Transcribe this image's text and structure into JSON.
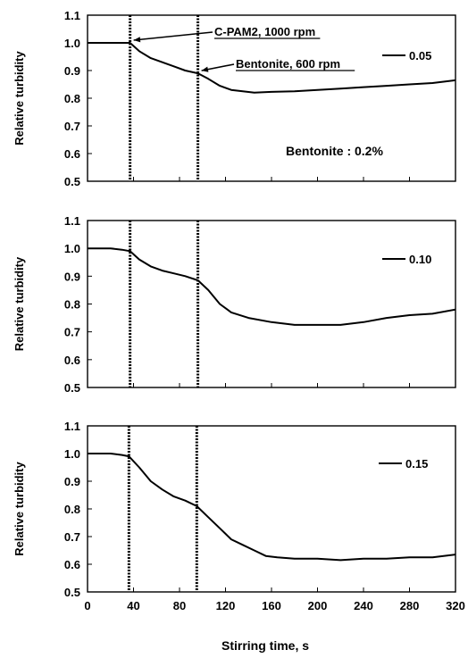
{
  "figure": {
    "xlabel": "Stirring time, s",
    "x_ticks": [
      "0",
      "40",
      "80",
      "120",
      "160",
      "200",
      "240",
      "280",
      "320"
    ]
  },
  "chart_data": [
    {
      "type": "line",
      "ylabel": "Relative turbidity",
      "xlim": [
        0,
        320
      ],
      "ylim": [
        0.5,
        1.1
      ],
      "y_ticks": [
        "0.5",
        "0.6",
        "0.7",
        "0.8",
        "0.9",
        "1.0",
        "1.1"
      ],
      "vlines": [
        37,
        96
      ],
      "legend": "0.05",
      "annotations": [
        {
          "text": "C-PAM2, 1000 rpm",
          "x": 37,
          "y": 1.0
        },
        {
          "text": "Bentonite, 600 rpm",
          "x": 96,
          "y": 0.89
        }
      ],
      "note": "Bentonite  :  0.2%",
      "series": [
        {
          "x": [
            0,
            10,
            20,
            30,
            37,
            45,
            55,
            65,
            75,
            85,
            96,
            105,
            115,
            125,
            135,
            145,
            160,
            180,
            200,
            220,
            240,
            260,
            280,
            300,
            320
          ],
          "y": [
            1.0,
            1.0,
            1.0,
            1.0,
            1.0,
            0.97,
            0.945,
            0.93,
            0.915,
            0.9,
            0.89,
            0.87,
            0.845,
            0.83,
            0.825,
            0.82,
            0.823,
            0.825,
            0.83,
            0.835,
            0.84,
            0.845,
            0.85,
            0.855,
            0.865
          ]
        }
      ]
    },
    {
      "type": "line",
      "ylabel": "Relative turbidity",
      "xlim": [
        0,
        320
      ],
      "ylim": [
        0.5,
        1.1
      ],
      "y_ticks": [
        "0.5",
        "0.6",
        "0.7",
        "0.8",
        "0.9",
        "1.0",
        "1.1"
      ],
      "vlines": [
        37,
        96
      ],
      "legend": "0.10",
      "series": [
        {
          "x": [
            0,
            10,
            20,
            30,
            37,
            45,
            55,
            65,
            75,
            85,
            96,
            105,
            115,
            125,
            140,
            160,
            180,
            200,
            220,
            240,
            260,
            280,
            300,
            320
          ],
          "y": [
            1.0,
            1.0,
            1.0,
            0.995,
            0.99,
            0.96,
            0.935,
            0.92,
            0.91,
            0.9,
            0.885,
            0.85,
            0.8,
            0.77,
            0.75,
            0.735,
            0.725,
            0.725,
            0.725,
            0.735,
            0.75,
            0.76,
            0.765,
            0.78
          ]
        }
      ]
    },
    {
      "type": "line",
      "ylabel": "Relative turbidity",
      "xlim": [
        0,
        320
      ],
      "ylim": [
        0.5,
        1.1
      ],
      "y_ticks": [
        "0.5",
        "0.6",
        "0.7",
        "0.8",
        "0.9",
        "1.0",
        "1.1"
      ],
      "vlines": [
        36,
        95
      ],
      "legend": "0.15",
      "series": [
        {
          "x": [
            0,
            10,
            20,
            30,
            36,
            45,
            55,
            65,
            75,
            85,
            95,
            105,
            115,
            125,
            135,
            145,
            155,
            165,
            180,
            200,
            220,
            240,
            260,
            280,
            300,
            320
          ],
          "y": [
            1.0,
            1.0,
            1.0,
            0.995,
            0.99,
            0.95,
            0.9,
            0.87,
            0.845,
            0.83,
            0.81,
            0.77,
            0.73,
            0.69,
            0.67,
            0.65,
            0.63,
            0.625,
            0.62,
            0.62,
            0.615,
            0.62,
            0.62,
            0.625,
            0.625,
            0.635
          ]
        }
      ]
    }
  ]
}
